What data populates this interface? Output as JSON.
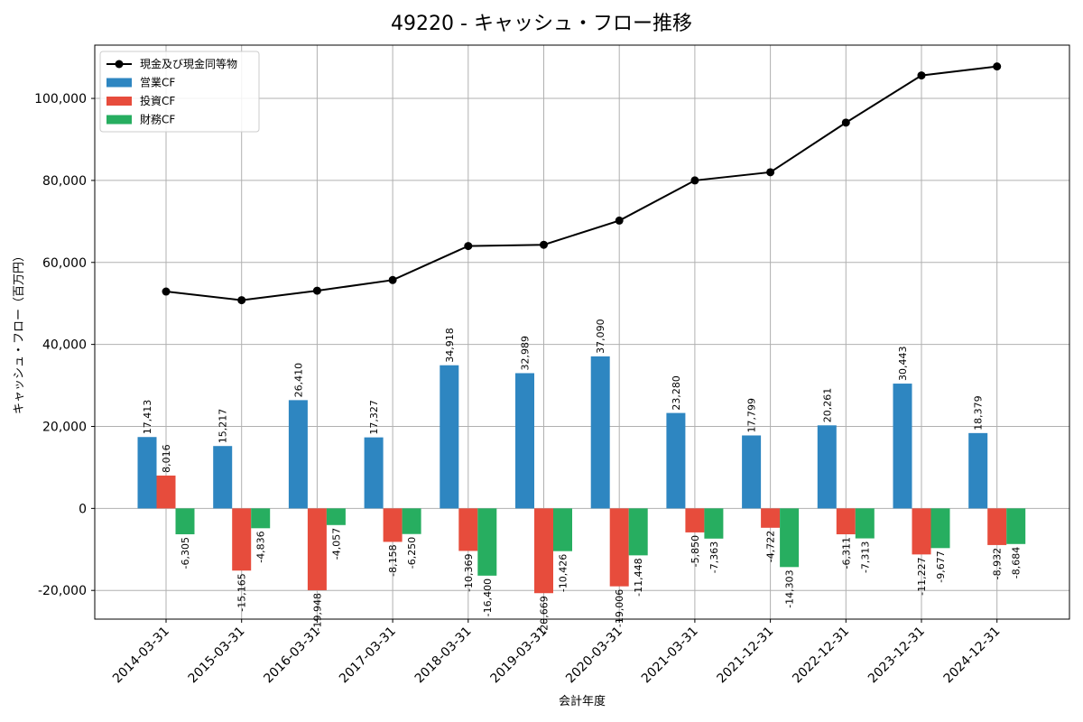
{
  "chart_data": {
    "type": "bar",
    "title": "49220 - キャッシュ・フロー推移",
    "xlabel": "会計年度",
    "ylabel": "キャッシュ・フロー（百万円）",
    "ylim": [
      -27000,
      113000
    ],
    "yticks": [
      -20000,
      0,
      20000,
      40000,
      60000,
      80000,
      100000
    ],
    "ytick_labels": [
      "-20,000",
      "0",
      "20,000",
      "40,000",
      "60,000",
      "80,000",
      "100,000"
    ],
    "grid": true,
    "legend_position": "top-left",
    "categories": [
      "2014-03-31",
      "2015-03-31",
      "2016-03-31",
      "2017-03-31",
      "2018-03-31",
      "2019-03-31",
      "2020-03-31",
      "2021-03-31",
      "2021-12-31",
      "2022-12-31",
      "2023-12-31",
      "2024-12-31"
    ],
    "series": [
      {
        "name": "営業CF",
        "kind": "bar",
        "color": "#2e86c1",
        "values": [
          17413,
          15217,
          26410,
          17327,
          34918,
          32989,
          37090,
          23280,
          17799,
          20261,
          30443,
          18379
        ],
        "labels": [
          "17,413",
          "15,217",
          "26,410",
          "17,327",
          "34,918",
          "32,989",
          "37,090",
          "23,280",
          "17,799",
          "20,261",
          "30,443",
          "18,379"
        ]
      },
      {
        "name": "投資CF",
        "kind": "bar",
        "color": "#e74c3c",
        "values": [
          8016,
          -15165,
          -19948,
          -8158,
          -10369,
          -20669,
          -19006,
          -5850,
          -4722,
          -6311,
          -11227,
          -8932
        ],
        "labels": [
          "8,016",
          "-15,165",
          "-19,948",
          "-8,158",
          "-10,369",
          "-20,669",
          "-19,006",
          "-5,850",
          "-4,722",
          "-6,311",
          "-11,227",
          "-8,932"
        ]
      },
      {
        "name": "財務CF",
        "kind": "bar",
        "color": "#27ae60",
        "values": [
          -6305,
          -4836,
          -4057,
          -6250,
          -16400,
          -10426,
          -11448,
          -7363,
          -14303,
          -7313,
          -9677,
          -8684
        ],
        "labels": [
          "-6,305",
          "-4,836",
          "-4,057",
          "-6,250",
          "-16,400",
          "-10,426",
          "-11,448",
          "-7,363",
          "-14,303",
          "-7,313",
          "-9,677",
          "-8,684"
        ]
      },
      {
        "name": "現金及び現金同等物",
        "kind": "line",
        "color": "#000000",
        "values": [
          52900,
          50800,
          53100,
          55700,
          64000,
          64300,
          70200,
          80000,
          82000,
          94100,
          105600,
          107800
        ]
      }
    ]
  }
}
